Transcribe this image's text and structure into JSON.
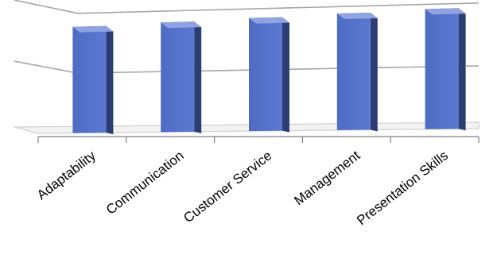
{
  "chart_data": {
    "type": "bar",
    "style": "3d-column",
    "categories": [
      "Adaptability",
      "Communication",
      "Customer Service",
      "Management",
      "Presentation Skills"
    ],
    "values": [
      96,
      98,
      100,
      102,
      104
    ],
    "ylim": [
      0,
      108
    ],
    "grid": true,
    "legend": "none",
    "title": "",
    "xlabel": "",
    "ylabel": "",
    "colors": {
      "bar_front": "#4f6cc4",
      "bar_front_light": "#5b79d0",
      "bar_side": "#2b3d72",
      "bar_top": "#8ea3e0",
      "grid": "#a6a6a6",
      "floor": "#d0d0d0",
      "axis": "#808080"
    }
  }
}
